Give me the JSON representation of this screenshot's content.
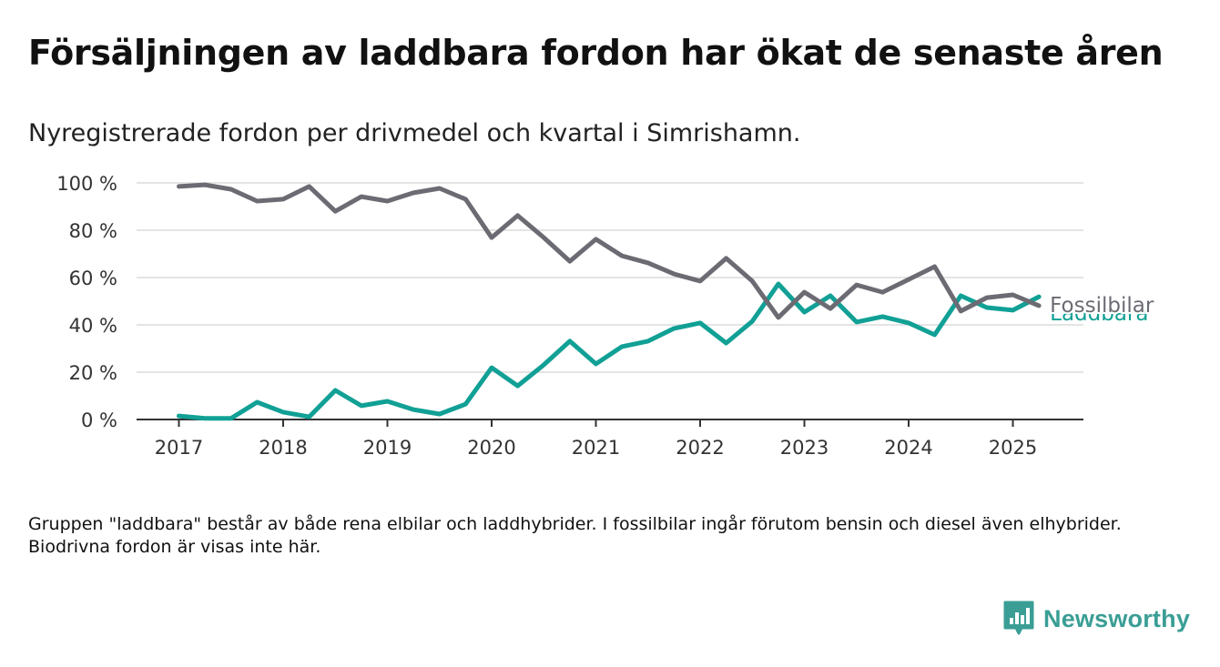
{
  "title": "Försäljningen av laddbara fordon har ökat de senaste åren",
  "subtitle": "Nyregistrerade fordon per drivmedel och kvartal i Simrishamn.",
  "footnote": "Gruppen \"laddbara\" består av både rena elbilar och laddhybrider. I fossilbilar ingår förutom bensin och diesel även elhybrider. Biodrivna fordon är visas inte här.",
  "brand": {
    "name": "Newsworthy",
    "icon": "bar-chart-icon",
    "color": "#3a9e95"
  },
  "chart_data": {
    "type": "line",
    "x_start_year": 2017,
    "x_ticks": [
      "2017",
      "2018",
      "2019",
      "2020",
      "2021",
      "2022",
      "2023",
      "2024",
      "2025"
    ],
    "y_ticks": [
      "0 %",
      "20 %",
      "40 %",
      "60 %",
      "80 %",
      "100 %"
    ],
    "ylim": [
      0,
      100
    ],
    "grid": true,
    "series": [
      {
        "name": "Fossilbilar",
        "color": "#6c6b73",
        "values": [
          98.5,
          99.2,
          97.3,
          92.3,
          93.1,
          98.5,
          88,
          94.2,
          92.3,
          95.8,
          97.7,
          93.1,
          76.9,
          86.2,
          76.9,
          66.9,
          76.2,
          69.2,
          66.2,
          61.5,
          58.5,
          68.1,
          58.5,
          43.1,
          53.8,
          46.9,
          56.9,
          53.8,
          59.2,
          64.6,
          45.8,
          51.5,
          52.7,
          48.1
        ]
      },
      {
        "name": "Laddbara",
        "color": "#11a095",
        "values": [
          1.5,
          0.5,
          0.5,
          7.3,
          3.1,
          1.1,
          12.3,
          5.8,
          7.7,
          4.2,
          2.3,
          6.5,
          21.9,
          14.2,
          23.1,
          33.1,
          23.5,
          30.8,
          33.1,
          38.5,
          40.8,
          32.3,
          41.5,
          57.3,
          45.4,
          52.3,
          41.2,
          43.5,
          40.8,
          35.8,
          52.3,
          47.3,
          46.2,
          51.9
        ]
      }
    ]
  }
}
